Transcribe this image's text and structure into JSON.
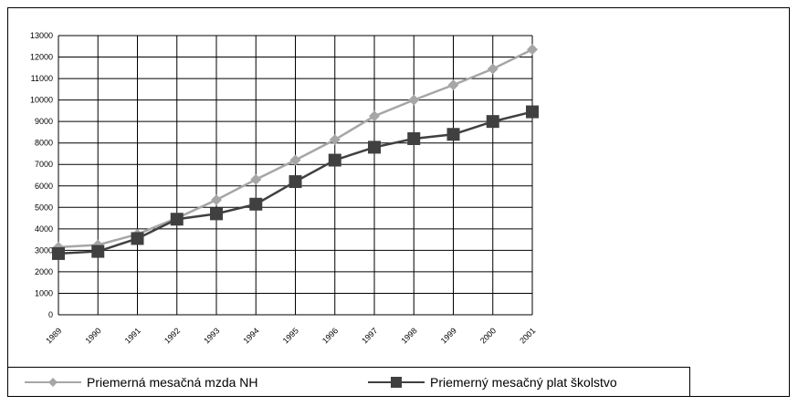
{
  "chart_data": {
    "type": "line",
    "categories": [
      "1989",
      "1990",
      "1991",
      "1992",
      "1993",
      "1994",
      "1995",
      "1996",
      "1997",
      "1998",
      "1999",
      "2000",
      "2001"
    ],
    "ylim": [
      0,
      13000
    ],
    "yticks": [
      "0",
      "1000",
      "2000",
      "3000",
      "4000",
      "5000",
      "6000",
      "7000",
      "8000",
      "9000",
      "10000",
      "11000",
      "12000",
      "13000"
    ],
    "grid": true,
    "legend_position": "bottom",
    "series": [
      {
        "name": "Priemerná mesačná mzda NH",
        "color": "#a6a6a6",
        "marker": "diamond",
        "values": [
          3150,
          3250,
          3750,
          4500,
          5350,
          6300,
          7200,
          8150,
          9250,
          10000,
          10700,
          11450,
          12350
        ]
      },
      {
        "name": "Priemerný mesačný plat školstvo",
        "color": "#404040",
        "marker": "square",
        "values": [
          2850,
          2950,
          3550,
          4450,
          4700,
          5150,
          6200,
          7200,
          7800,
          8200,
          8400,
          9000,
          9450
        ]
      }
    ]
  }
}
